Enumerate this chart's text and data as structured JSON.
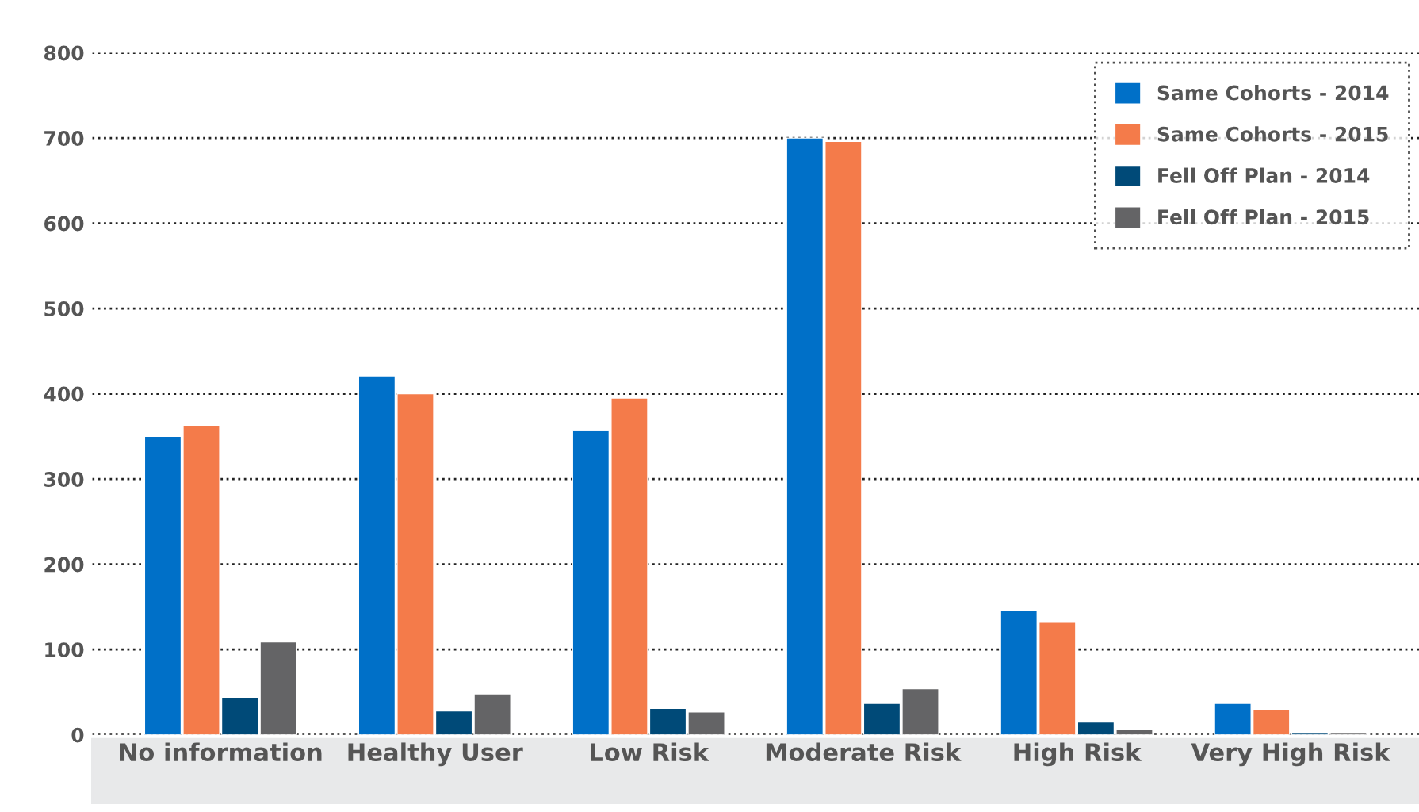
{
  "chart_data": {
    "type": "bar",
    "categories": [
      "No information",
      "Healthy User",
      "Low Risk",
      "Moderate Risk",
      "High Risk",
      "Very High Risk"
    ],
    "series": [
      {
        "name": "Same Cohorts - 2014",
        "color": "#0070c8",
        "values": [
          350,
          421,
          357,
          700,
          146,
          37
        ]
      },
      {
        "name": "Same Cohorts - 2015",
        "color": "#f47b4a",
        "values": [
          363,
          400,
          395,
          696,
          132,
          30
        ]
      },
      {
        "name": "Fell Off Plan - 2014",
        "color": "#004a78",
        "values": [
          44,
          28,
          31,
          37,
          15,
          2
        ]
      },
      {
        "name": "Fell Off Plan - 2015",
        "color": "#646466",
        "values": [
          109,
          48,
          27,
          54,
          6,
          2
        ]
      }
    ],
    "ylim": [
      0,
      800
    ],
    "yticks": [
      0,
      100,
      200,
      300,
      400,
      500,
      600,
      700,
      800
    ],
    "grid": "y",
    "legend": "top right"
  }
}
